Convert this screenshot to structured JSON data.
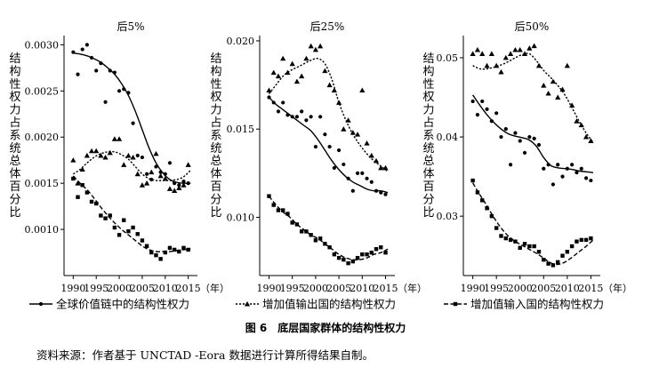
{
  "figure": {
    "caption": "图 6　底层国家群体的结构性权力",
    "source": "资料来源：作者基于 UNCTAD -Eora 数据进行计算所得结果自制。",
    "ylabel": "结构性权力占系统总体百分比",
    "year_unit": "（年）",
    "legend": [
      {
        "key": "gvc",
        "label": "全球价值链中的结构性权力"
      },
      {
        "key": "vax",
        "label": "增加值输出国的结构性权力"
      },
      {
        "key": "vam",
        "label": "增加值输入国的结构性权力"
      }
    ]
  },
  "chart_data": [
    {
      "type": "scatter",
      "title": "后5%",
      "xlim": [
        1988,
        2017
      ],
      "ylim": [
        0.0005,
        0.0031
      ],
      "yticks": [
        0.001,
        0.0015,
        0.002,
        0.0025,
        0.003
      ],
      "ytick_labels": [
        "0.0010",
        "0.0015",
        "0.0020",
        "0.0025",
        "0.0030"
      ],
      "xticks": [
        1990,
        1995,
        2000,
        2005,
        2010,
        2015
      ],
      "series": [
        {
          "key": "gvc",
          "x": [
            1990,
            1991,
            1992,
            1993,
            1994,
            1995,
            1996,
            1997,
            1998,
            1999,
            2000,
            2001,
            2002,
            2003,
            2004,
            2005,
            2006,
            2007,
            2008,
            2009,
            2010,
            2011,
            2012,
            2013,
            2014,
            2015
          ],
          "y": [
            0.00292,
            0.00268,
            0.00295,
            0.003,
            0.00286,
            0.00272,
            0.0028,
            0.00238,
            0.00272,
            0.0027,
            0.0025,
            0.00252,
            0.00248,
            0.00215,
            0.0018,
            0.00178,
            0.0016,
            0.00154,
            0.00168,
            0.00162,
            0.0016,
            0.00172,
            0.0015,
            0.00148,
            0.00152,
            0.0015
          ],
          "trend": [
            0.00291,
            0.0029,
            0.00288,
            0.00285,
            0.00281,
            0.00275,
            0.00268,
            0.00258,
            0.00245,
            0.00228,
            0.00208,
            0.00188,
            0.00172,
            0.00161,
            0.00154,
            0.00151,
            0.0015,
            0.0015
          ]
        },
        {
          "key": "vax",
          "x": [
            1990,
            1991,
            1992,
            1993,
            1994,
            1995,
            1996,
            1997,
            1998,
            1999,
            2000,
            2001,
            2002,
            2003,
            2004,
            2005,
            2006,
            2007,
            2008,
            2009,
            2010,
            2011,
            2012,
            2013,
            2014,
            2015
          ],
          "y": [
            0.00175,
            0.0015,
            0.00165,
            0.0018,
            0.00185,
            0.00185,
            0.0018,
            0.00178,
            0.00183,
            0.00198,
            0.00198,
            0.0017,
            0.0018,
            0.00178,
            0.0016,
            0.00148,
            0.0015,
            0.00162,
            0.00182,
            0.00158,
            0.00155,
            0.00144,
            0.00142,
            0.00145,
            0.00148,
            0.0017
          ],
          "trend": [
            0.0016,
            0.00165,
            0.00172,
            0.00178,
            0.00182,
            0.00184,
            0.00184,
            0.00181,
            0.00176,
            0.00168,
            0.0016,
            0.00155,
            0.00153,
            0.00153,
            0.00153,
            0.00154,
            0.00157,
            0.00164
          ]
        },
        {
          "key": "vam",
          "x": [
            1990,
            1991,
            1992,
            1993,
            1994,
            1995,
            1996,
            1997,
            1998,
            1999,
            2000,
            2001,
            2002,
            2003,
            2004,
            2005,
            2006,
            2007,
            2008,
            2009,
            2010,
            2011,
            2012,
            2013,
            2014,
            2015
          ],
          "y": [
            0.00155,
            0.00135,
            0.00148,
            0.0014,
            0.0013,
            0.00128,
            0.00115,
            0.00112,
            0.00115,
            0.00102,
            0.00094,
            0.0011,
            0.00098,
            0.00102,
            0.00095,
            0.00088,
            0.00082,
            0.00075,
            0.00072,
            0.00068,
            0.00075,
            0.0008,
            0.00078,
            0.00076,
            0.0008,
            0.00078
          ],
          "trend": [
            0.00158,
            0.0015,
            0.00143,
            0.00134,
            0.00124,
            0.00115,
            0.00107,
            0.001,
            0.00094,
            0.00088,
            0.00082,
            0.00078,
            0.00076,
            0.00076,
            0.00076,
            0.00077,
            0.00078,
            0.00079
          ]
        }
      ]
    },
    {
      "type": "scatter",
      "title": "后25%",
      "xlim": [
        1988,
        2017
      ],
      "ylim": [
        0.0067,
        0.0203
      ],
      "yticks": [
        0.01,
        0.015,
        0.02
      ],
      "ytick_labels": [
        "0.010",
        "0.015",
        "0.020"
      ],
      "xticks": [
        1990,
        1995,
        2000,
        2005,
        2010,
        2015
      ],
      "series": [
        {
          "key": "gvc",
          "x": [
            1990,
            1991,
            1992,
            1993,
            1994,
            1995,
            1996,
            1997,
            1998,
            1999,
            2000,
            2001,
            2002,
            2003,
            2004,
            2005,
            2006,
            2007,
            2008,
            2009,
            2010,
            2011,
            2012,
            2013,
            2014,
            2015
          ],
          "y": [
            0.0168,
            0.0165,
            0.016,
            0.0165,
            0.0158,
            0.0157,
            0.0157,
            0.016,
            0.0155,
            0.0157,
            0.014,
            0.0157,
            0.0147,
            0.014,
            0.0128,
            0.0138,
            0.013,
            0.0122,
            0.0115,
            0.0125,
            0.0125,
            0.0122,
            0.012,
            0.0115,
            0.0114,
            0.0113
          ],
          "trend": [
            0.0168,
            0.0164,
            0.0161,
            0.0158,
            0.0155,
            0.0152,
            0.0149,
            0.0144,
            0.0138,
            0.0132,
            0.0127,
            0.0123,
            0.012,
            0.0118,
            0.0116,
            0.0115,
            0.0115,
            0.0114
          ]
        },
        {
          "key": "vax",
          "x": [
            1990,
            1991,
            1992,
            1993,
            1994,
            1995,
            1996,
            1997,
            1998,
            1999,
            2000,
            2001,
            2002,
            2003,
            2004,
            2005,
            2006,
            2007,
            2008,
            2009,
            2010,
            2011,
            2012,
            2013,
            2014,
            2015
          ],
          "y": [
            0.0172,
            0.0182,
            0.018,
            0.019,
            0.0182,
            0.0187,
            0.0177,
            0.018,
            0.019,
            0.0197,
            0.0195,
            0.0197,
            0.0183,
            0.0175,
            0.0172,
            0.0165,
            0.015,
            0.0155,
            0.0148,
            0.0147,
            0.0172,
            0.0142,
            0.0135,
            0.0132,
            0.0128,
            0.0128
          ],
          "trend": [
            0.017,
            0.0175,
            0.018,
            0.0183,
            0.0185,
            0.0187,
            0.0189,
            0.019,
            0.0187,
            0.0178,
            0.0165,
            0.0155,
            0.0147,
            0.0141,
            0.0136,
            0.0132,
            0.0129,
            0.0126
          ]
        },
        {
          "key": "vam",
          "x": [
            1990,
            1991,
            1992,
            1993,
            1994,
            1995,
            1996,
            1997,
            1998,
            1999,
            2000,
            2001,
            2002,
            2003,
            2004,
            2005,
            2006,
            2007,
            2008,
            2009,
            2010,
            2011,
            2012,
            2013,
            2014,
            2015
          ],
          "y": [
            0.0112,
            0.0107,
            0.0104,
            0.0104,
            0.0102,
            0.0097,
            0.0096,
            0.0092,
            0.0092,
            0.009,
            0.0087,
            0.0088,
            0.0085,
            0.0083,
            0.0079,
            0.0077,
            0.0076,
            0.0074,
            0.0075,
            0.0077,
            0.0079,
            0.0079,
            0.008,
            0.0082,
            0.0083,
            0.008
          ],
          "trend": [
            0.0112,
            0.0107,
            0.0103,
            0.01,
            0.0096,
            0.0093,
            0.009,
            0.0088,
            0.0085,
            0.0082,
            0.0079,
            0.0077,
            0.0076,
            0.0076,
            0.0077,
            0.0079,
            0.008,
            0.0082
          ]
        }
      ]
    },
    {
      "type": "scatter",
      "title": "后50%",
      "xlim": [
        1988,
        2017
      ],
      "ylim": [
        0.0225,
        0.0528
      ],
      "yticks": [
        0.03,
        0.04,
        0.05
      ],
      "ytick_labels": [
        "0.03",
        "0.04",
        "0.05"
      ],
      "xticks": [
        1990,
        1995,
        2000,
        2005,
        2010,
        2015
      ],
      "series": [
        {
          "key": "gvc",
          "x": [
            1990,
            1991,
            1992,
            1993,
            1994,
            1995,
            1996,
            1997,
            1998,
            1999,
            2000,
            2001,
            2002,
            2003,
            2004,
            2005,
            2006,
            2007,
            2008,
            2009,
            2010,
            2011,
            2012,
            2013,
            2014,
            2015
          ],
          "y": [
            0.0445,
            0.0428,
            0.0445,
            0.0435,
            0.042,
            0.043,
            0.04,
            0.041,
            0.0365,
            0.0405,
            0.0395,
            0.038,
            0.04,
            0.0398,
            0.039,
            0.036,
            0.0365,
            0.034,
            0.0365,
            0.035,
            0.036,
            0.0365,
            0.0355,
            0.036,
            0.0348,
            0.0345
          ],
          "trend": [
            0.0453,
            0.044,
            0.0428,
            0.0418,
            0.041,
            0.0404,
            0.0401,
            0.0399,
            0.0396,
            0.0388,
            0.0374,
            0.0364,
            0.0361,
            0.036,
            0.0359,
            0.0357,
            0.0356,
            0.0355
          ]
        },
        {
          "key": "vax",
          "x": [
            1990,
            1991,
            1992,
            1993,
            1994,
            1995,
            1996,
            1997,
            1998,
            1999,
            2000,
            2001,
            2002,
            2003,
            2004,
            2005,
            2006,
            2007,
            2008,
            2009,
            2010,
            2011,
            2012,
            2013,
            2014,
            2015
          ],
          "y": [
            0.0505,
            0.051,
            0.0505,
            0.049,
            0.0505,
            0.049,
            0.0482,
            0.05,
            0.0505,
            0.051,
            0.051,
            0.0505,
            0.0512,
            0.0515,
            0.049,
            0.0465,
            0.0455,
            0.047,
            0.045,
            0.046,
            0.049,
            0.044,
            0.042,
            0.0415,
            0.04,
            0.0395
          ],
          "trend": [
            0.049,
            0.0486,
            0.0486,
            0.0488,
            0.0491,
            0.0495,
            0.05,
            0.0504,
            0.0505,
            0.0496,
            0.0484,
            0.0475,
            0.0465,
            0.0453,
            0.0437,
            0.042,
            0.0405,
            0.0393
          ]
        },
        {
          "key": "vam",
          "x": [
            1990,
            1991,
            1992,
            1993,
            1994,
            1995,
            1996,
            1997,
            1998,
            1999,
            2000,
            2001,
            2002,
            2003,
            2004,
            2005,
            2006,
            2007,
            2008,
            2009,
            2010,
            2011,
            2012,
            2013,
            2014,
            2015
          ],
          "y": [
            0.0345,
            0.033,
            0.032,
            0.031,
            0.03,
            0.0285,
            0.0275,
            0.0272,
            0.027,
            0.0268,
            0.026,
            0.0265,
            0.0262,
            0.0262,
            0.0255,
            0.0245,
            0.024,
            0.0238,
            0.0242,
            0.025,
            0.0255,
            0.0262,
            0.0268,
            0.027,
            0.027,
            0.0272
          ],
          "trend": [
            0.0342,
            0.0327,
            0.0313,
            0.0298,
            0.0285,
            0.0275,
            0.0268,
            0.0263,
            0.0258,
            0.0253,
            0.0247,
            0.0241,
            0.0239,
            0.0242,
            0.0248,
            0.0255,
            0.0262,
            0.027
          ]
        }
      ]
    }
  ]
}
